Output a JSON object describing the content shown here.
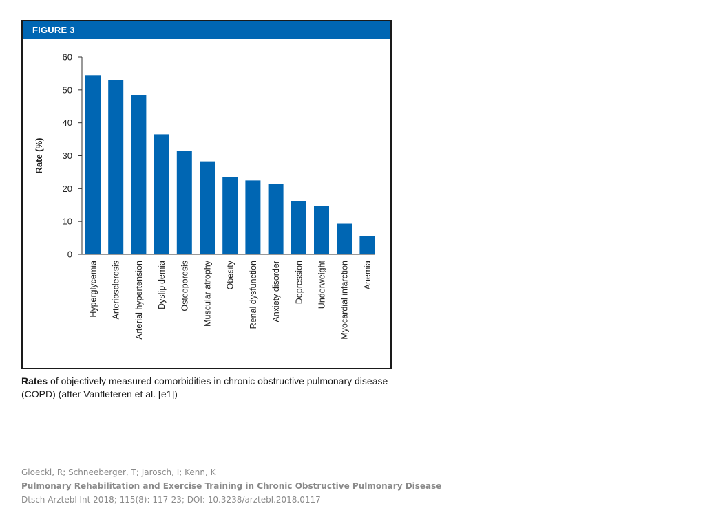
{
  "figure": {
    "header": "FIGURE 3"
  },
  "caption": {
    "bold": "Rates",
    "text": " of objectively measured comorbidities in chronic obstructive pulmonary disease (COPD) (after Vanfleteren et al. [e1])"
  },
  "citation": {
    "authors": "Gloeckl, R; Schneeberger, T; Jarosch, I; Kenn, K",
    "title": "Pulmonary Rehabilitation and Exercise Training in Chronic Obstructive Pulmonary Disease",
    "source": "Dtsch Arztebl Int 2018; 115(8): 117-23; DOI: 10.3238/arztebl.2018.0117"
  },
  "colors": {
    "bar": "#0066b3",
    "header": "#0066b3"
  },
  "chart_data": {
    "type": "bar",
    "title": "",
    "xlabel": "",
    "ylabel": "Rate (%)",
    "ylim": [
      0,
      60
    ],
    "yticks": [
      0,
      10,
      20,
      30,
      40,
      50,
      60
    ],
    "grid": false,
    "categories": [
      "Hyperglycemia",
      "Arteriosclerosis",
      "Arterial hypertension",
      "Dyslipidemia",
      "Osteoporosis",
      "Muscular atrophy",
      "Obesity",
      "Renal dysfunction",
      "Anxiety disorder",
      "Depression",
      "Underweight",
      "Myocardial infarction",
      "Anemia"
    ],
    "values": [
      54.5,
      53,
      48.5,
      36.5,
      31.5,
      28.3,
      23.5,
      22.5,
      21.5,
      16.3,
      14.7,
      9.3,
      5.5
    ]
  }
}
